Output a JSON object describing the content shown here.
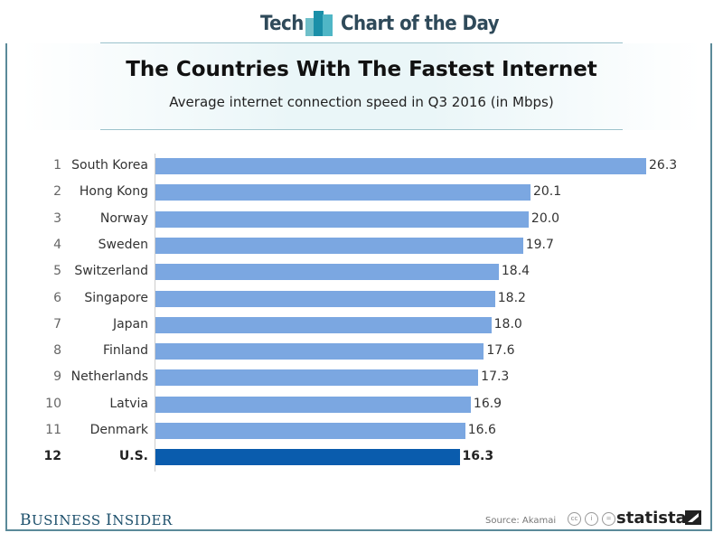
{
  "header": {
    "left": "Tech",
    "right": "Chart of the Day"
  },
  "chart_data": {
    "type": "bar",
    "orientation": "horizontal",
    "title": "The Countries With The Fastest Internet",
    "subtitle": "Average internet connection speed in Q3 2016 (in Mbps)",
    "ranks": [
      "1",
      "2",
      "3",
      "4",
      "5",
      "6",
      "7",
      "8",
      "9",
      "10",
      "11",
      "12"
    ],
    "categories": [
      "South Korea",
      "Hong Kong",
      "Norway",
      "Sweden",
      "Switzerland",
      "Singapore",
      "Japan",
      "Finland",
      "Netherlands",
      "Latvia",
      "Denmark",
      "U.S."
    ],
    "values": [
      26.3,
      20.1,
      20.0,
      19.7,
      18.4,
      18.2,
      18.0,
      17.6,
      17.3,
      16.9,
      16.6,
      16.3
    ],
    "value_labels": [
      "26.3",
      "20.1",
      "20.0",
      "19.7",
      "18.4",
      "18.2",
      "18.0",
      "17.6",
      "17.3",
      "16.9",
      "16.6",
      "16.3"
    ],
    "highlight": "U.S.",
    "colors": {
      "bar": "#7ba7e1",
      "highlight": "#0a5cad"
    },
    "grid": false
  },
  "footer": {
    "publisher_b": "B",
    "publisher_rest1": "USINESS ",
    "publisher_i": "I",
    "publisher_rest2": "NSIDER",
    "source": "Source: Akamai",
    "license_icons": [
      "cc-icon",
      "attribution-icon",
      "no-derivatives-icon"
    ],
    "brand": "statista"
  }
}
